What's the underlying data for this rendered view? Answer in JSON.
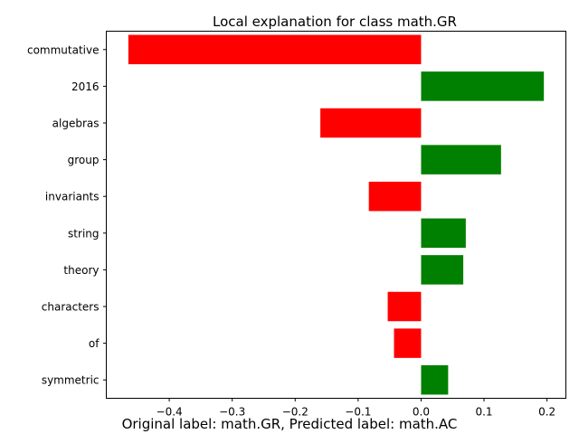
{
  "chart_data": {
    "type": "bar",
    "orientation": "horizontal",
    "title": "Local explanation for class math.GR",
    "categories": [
      "commutative",
      "2016",
      "algebras",
      "group",
      "invariants",
      "string",
      "theory",
      "characters",
      "of",
      "symmetric"
    ],
    "values": [
      -0.465,
      0.195,
      -0.16,
      0.127,
      -0.083,
      0.071,
      0.067,
      -0.053,
      -0.043,
      0.043
    ],
    "positive_color": "#008000",
    "negative_color": "#ff0000",
    "xlim": [
      -0.5,
      0.23
    ],
    "xticks": [
      -0.4,
      -0.3,
      -0.2,
      -0.1,
      0.0,
      0.1,
      0.2
    ],
    "xtick_labels": [
      "−0.4",
      "−0.3",
      "−0.2",
      "−0.1",
      "0.0",
      "0.1",
      "0.2"
    ],
    "grid": false,
    "caption": "Original label: math.GR, Predicted label: math.AC"
  }
}
